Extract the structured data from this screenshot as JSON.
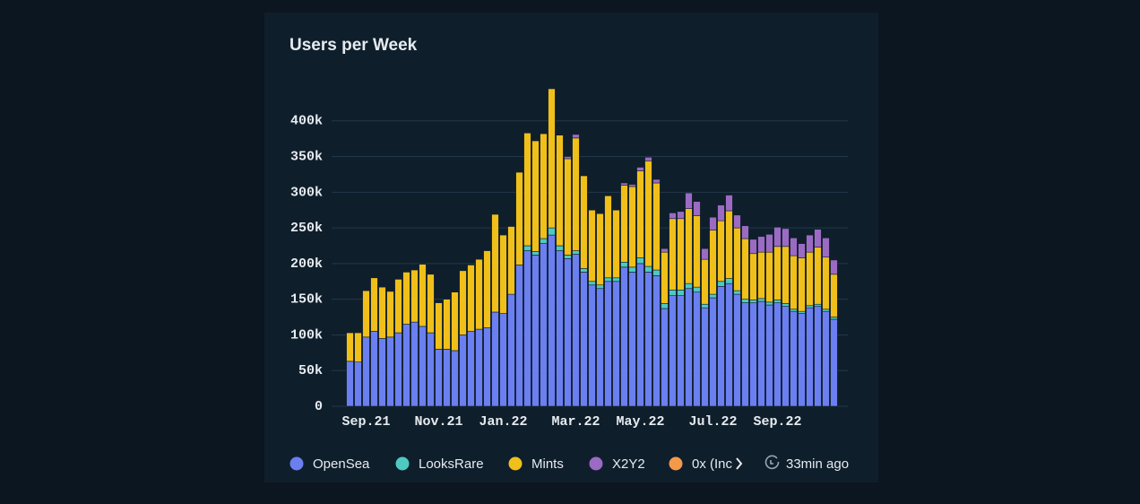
{
  "chart_data": {
    "type": "stacked-bar",
    "title": "Users per Week",
    "categories": [
      null,
      null,
      "Sep.21",
      null,
      null,
      null,
      null,
      null,
      null,
      null,
      null,
      "Nov.21",
      null,
      null,
      null,
      null,
      null,
      null,
      null,
      "Jan.22",
      null,
      null,
      null,
      null,
      null,
      null,
      null,
      null,
      "Mar.22",
      null,
      null,
      null,
      null,
      null,
      null,
      null,
      "May.22",
      null,
      null,
      null,
      null,
      null,
      null,
      null,
      null,
      "Jul.22",
      null,
      null,
      null,
      null,
      null,
      null,
      null,
      "Sep.22",
      null,
      null,
      null,
      null,
      null,
      null,
      null
    ],
    "series": [
      {
        "name": "OpenSea",
        "color": "#6b7ff0",
        "values": [
          63000,
          62000,
          97000,
          105000,
          95000,
          97000,
          103000,
          115000,
          118000,
          112000,
          103000,
          80000,
          80000,
          78000,
          100000,
          105000,
          108000,
          110000,
          132000,
          130000,
          157000,
          198000,
          218000,
          212000,
          228000,
          240000,
          218000,
          207000,
          213000,
          188000,
          170000,
          165000,
          175000,
          175000,
          195000,
          188000,
          200000,
          188000,
          183000,
          137000,
          155000,
          155000,
          165000,
          160000,
          138000,
          152000,
          168000,
          172000,
          157000,
          145000,
          145000,
          147000,
          142000,
          145000,
          140000,
          133000,
          130000,
          138000,
          140000,
          133000,
          122000
        ]
      },
      {
        "name": "LooksRare",
        "color": "#4fc9c0",
        "values": [
          0,
          0,
          0,
          0,
          0,
          0,
          0,
          0,
          0,
          0,
          0,
          0,
          0,
          0,
          0,
          0,
          0,
          0,
          0,
          0,
          0,
          0,
          7000,
          5000,
          7000,
          10000,
          7000,
          5000,
          5000,
          5000,
          5000,
          5000,
          5000,
          5000,
          7000,
          7000,
          8000,
          8000,
          8000,
          7000,
          8000,
          8000,
          7000,
          7000,
          5000,
          5000,
          7000,
          7000,
          5000,
          5000,
          4000,
          4000,
          4000,
          4000,
          4000,
          3000,
          3000,
          3000,
          3000,
          3000,
          3000
        ]
      },
      {
        "name": "Mints",
        "color": "#f0bf1a",
        "values": [
          40000,
          41000,
          65000,
          75000,
          72000,
          64000,
          75000,
          73000,
          73000,
          87000,
          82000,
          65000,
          70000,
          82000,
          90000,
          93000,
          98000,
          108000,
          137000,
          110000,
          95000,
          130000,
          158000,
          155000,
          147000,
          195000,
          155000,
          135000,
          158000,
          130000,
          100000,
          100000,
          115000,
          95000,
          108000,
          113000,
          122000,
          148000,
          122000,
          72000,
          100000,
          100000,
          105000,
          100000,
          63000,
          90000,
          85000,
          95000,
          88000,
          85000,
          65000,
          65000,
          70000,
          75000,
          80000,
          75000,
          75000,
          75000,
          80000,
          73000,
          60000
        ]
      },
      {
        "name": "X2Y2",
        "color": "#9b6bc4",
        "values": [
          0,
          0,
          0,
          0,
          0,
          0,
          0,
          0,
          0,
          0,
          0,
          0,
          0,
          0,
          0,
          0,
          0,
          0,
          0,
          0,
          0,
          0,
          0,
          0,
          0,
          0,
          0,
          3000,
          5000,
          0,
          0,
          0,
          0,
          0,
          3000,
          3000,
          5000,
          5000,
          5000,
          5000,
          8000,
          10000,
          22000,
          20000,
          15000,
          18000,
          22000,
          22000,
          18000,
          18000,
          20000,
          22000,
          25000,
          27000,
          25000,
          25000,
          20000,
          24000,
          25000,
          27000,
          20000
        ]
      },
      {
        "name": "0x (Inc",
        "color": "#f39a4a",
        "values": [
          0,
          0,
          0,
          0,
          0,
          0,
          0,
          0,
          0,
          0,
          0,
          0,
          0,
          0,
          0,
          0,
          0,
          0,
          0,
          0,
          0,
          0,
          0,
          0,
          0,
          0,
          0,
          0,
          0,
          0,
          0,
          0,
          0,
          0,
          0,
          0,
          0,
          0,
          0,
          0,
          0,
          0,
          0,
          0,
          0,
          0,
          0,
          0,
          0,
          0,
          0,
          0,
          0,
          0,
          0,
          0,
          0,
          0,
          0,
          0,
          0
        ]
      }
    ],
    "ylim": [
      0,
      450000
    ],
    "yticks": [
      0,
      {
        "value": 50000,
        "label": "50k"
      },
      {
        "value": 100000,
        "label": "100k"
      },
      {
        "value": 150000,
        "label": "150k"
      },
      {
        "value": 200000,
        "label": "200k"
      },
      {
        "value": 250000,
        "label": "250k"
      },
      {
        "value": 300000,
        "label": "300k"
      },
      {
        "value": 350000,
        "label": "350k"
      },
      {
        "value": 400000,
        "label": "400k"
      }
    ],
    "grid": true,
    "updated": "33min ago"
  }
}
